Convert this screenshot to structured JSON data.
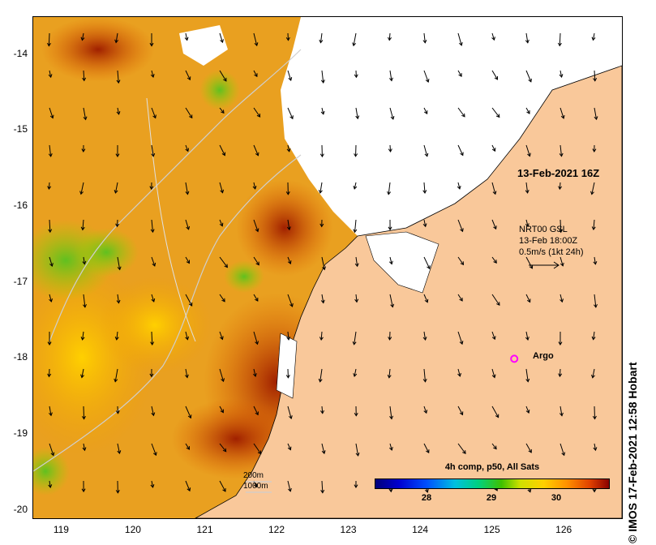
{
  "map": {
    "title_timestamp": "13-Feb-2021 16Z",
    "y_ticks": [
      "-14",
      "-15",
      "-16",
      "-17",
      "-18",
      "-19",
      "-20"
    ],
    "x_ticks": [
      "119",
      "120",
      "121",
      "122",
      "123",
      "124",
      "125",
      "126"
    ],
    "lat_range": [
      -20.1,
      -13.5
    ],
    "lon_range": [
      118.6,
      126.8
    ],
    "credit": "© IMOS 17-Feb-2021 12:58 Hobart",
    "wind": {
      "source": "NRT00 GSL",
      "time": "13-Feb 18:00Z",
      "scale": "0.5m/s (1kt 24h)"
    },
    "argo_label": "Argo",
    "argo_position": {
      "lon": 125.3,
      "lat": -18.0
    },
    "isobaths": [
      "200m",
      "1000m"
    ],
    "colorbar": {
      "title": "4h comp, p50, All Sats",
      "ticks": [
        "28",
        "29",
        "30"
      ],
      "tick_values": [
        28,
        29,
        30
      ],
      "range": [
        27.2,
        30.8
      ]
    },
    "colors": {
      "land": "#f9c89a",
      "cloud": "#ffffff",
      "argo": "#ff00ff"
    }
  }
}
